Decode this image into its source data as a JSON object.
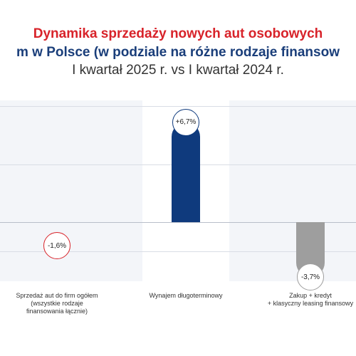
{
  "title_lines": [
    "Dynamika sprzedaży nowych aut osobowych",
    "m w Polsce (w podziale na różne rodzaje finansow",
    "I kwartał 2025 r. vs I kwartał 2024 r."
  ],
  "colors": {
    "title_red": "#d8232a",
    "title_navy": "#1a3e7a",
    "bar_navy": "#0f3a7d",
    "bar_gray": "#9e9e9e",
    "bubble_red_border": "#d8232a",
    "bubble_navy_border": "#0f3a7d",
    "bubble_gray_border": "#9e9e9e"
  },
  "chart_data": {
    "type": "bar",
    "categories": [
      [
        "Sprzedaż aut do firm ogółem",
        "(wszystkie rodzaje",
        "finansowania łącznie)"
      ],
      [
        "Wynajem długoterminowy"
      ],
      [
        "Zakup + kredyt",
        "+ klasyczny leasing finansowy"
      ]
    ],
    "values": [
      -1.6,
      6.7,
      -3.7
    ],
    "data_labels": [
      "-1,6%",
      "+6,7%",
      "-3,7%"
    ],
    "value_unit": "%",
    "ylim": [
      -5,
      12
    ],
    "grid": true
  }
}
